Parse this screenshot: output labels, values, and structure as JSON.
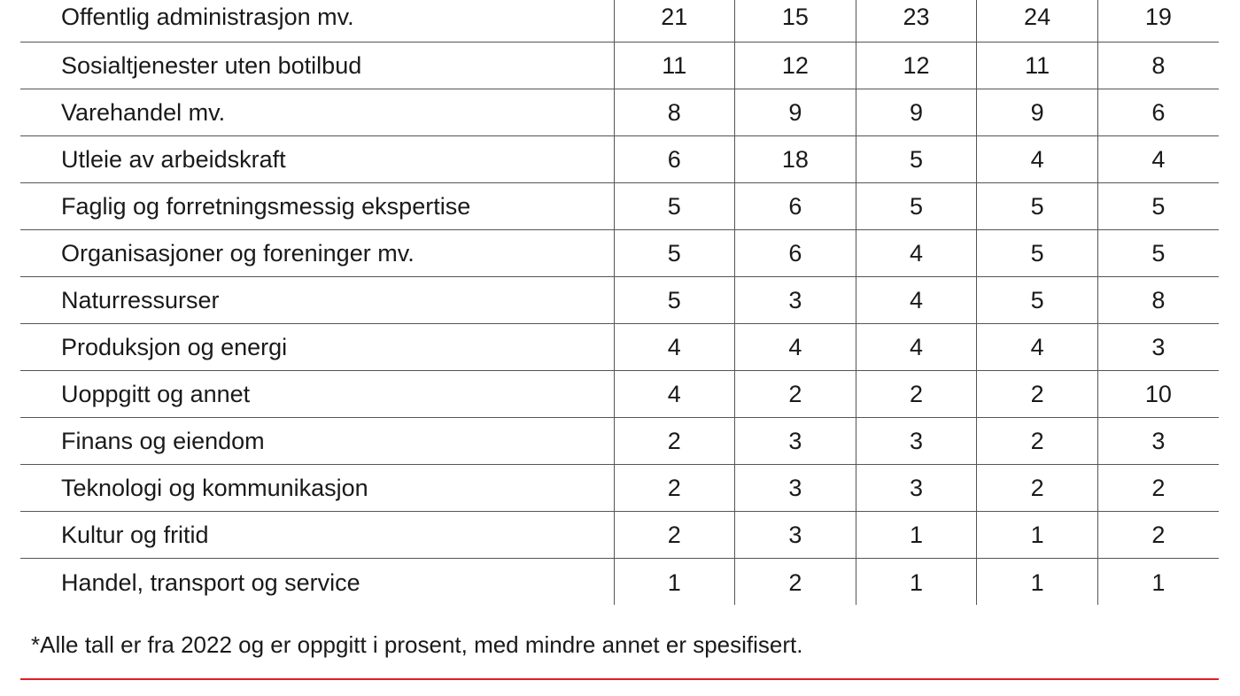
{
  "table": {
    "rows": [
      {
        "label": "Offentlig administrasjon mv.",
        "values": [
          "21",
          "15",
          "23",
          "24",
          "19"
        ]
      },
      {
        "label": "Sosialtjenester uten botilbud",
        "values": [
          "11",
          "12",
          "12",
          "11",
          "8"
        ]
      },
      {
        "label": "Varehandel mv.",
        "values": [
          "8",
          "9",
          "9",
          "9",
          "6"
        ]
      },
      {
        "label": "Utleie av arbeidskraft",
        "values": [
          "6",
          "18",
          "5",
          "4",
          "4"
        ]
      },
      {
        "label": "Faglig og forretningsmessig ekspertise",
        "values": [
          "5",
          "6",
          "5",
          "5",
          "5"
        ]
      },
      {
        "label": "Organisasjoner og foreninger mv.",
        "values": [
          "5",
          "6",
          "4",
          "5",
          "5"
        ]
      },
      {
        "label": "Naturressurser",
        "values": [
          "5",
          "3",
          "4",
          "5",
          "8"
        ]
      },
      {
        "label": "Produksjon og energi",
        "values": [
          "4",
          "4",
          "4",
          "4",
          "3"
        ]
      },
      {
        "label": "Uoppgitt og annet",
        "values": [
          "4",
          "2",
          "2",
          "2",
          "10"
        ]
      },
      {
        "label": "Finans og eiendom",
        "values": [
          "2",
          "3",
          "3",
          "2",
          "3"
        ]
      },
      {
        "label": "Teknologi og kommunikasjon",
        "values": [
          "2",
          "3",
          "3",
          "2",
          "2"
        ]
      },
      {
        "label": "Kultur og fritid",
        "values": [
          "2",
          "3",
          "1",
          "1",
          "2"
        ]
      },
      {
        "label": "Handel, transport og service",
        "values": [
          "1",
          "2",
          "1",
          "1",
          "1"
        ]
      }
    ]
  },
  "footnote": "*Alle tall er fra 2022 og er oppgitt i prosent, med mindre annet er spesifisert.",
  "colors": {
    "accent_rule": "#e01e2b",
    "text": "#1a1a1a",
    "grid": "#555555"
  }
}
